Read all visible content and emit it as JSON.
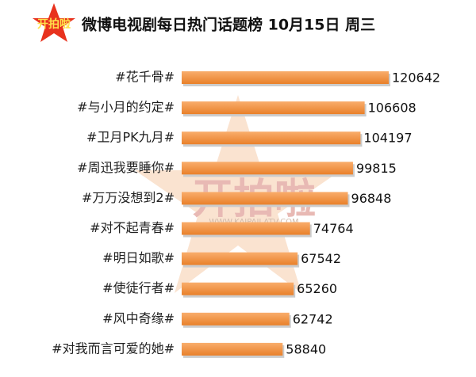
{
  "chart_data": {
    "type": "bar",
    "orientation": "horizontal",
    "title": "微博电视剧每日热门话题榜  10月15日 周三",
    "logo_text": "开拍啦",
    "watermark_text": "开拍啦",
    "watermark_url": "WWW.KAIPAILATV.COM",
    "categories": [
      "#花千骨#",
      "#与小月的约定#",
      "#卫月PK九月#",
      "#周迅我要睡你#",
      "#万万没想到2#",
      "#对不起青春#",
      "#明日如歌#",
      "#使徒行者#",
      "#风中奇缘#",
      "#对我而言可爱的她#"
    ],
    "values": [
      120642,
      106608,
      104197,
      99815,
      96848,
      74764,
      67542,
      65260,
      62742,
      58840
    ],
    "color": "#f5923e"
  }
}
